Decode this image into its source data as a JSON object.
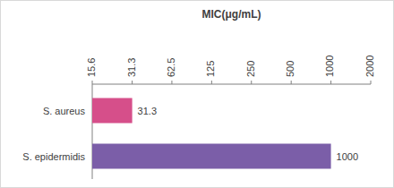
{
  "chart_data": {
    "type": "bar",
    "orientation": "horizontal",
    "title": "MIC(μg/mL)",
    "categories": [
      "S. aureus",
      "S. epidermidis"
    ],
    "values": [
      31.3,
      1000
    ],
    "colors": [
      "#d64f8a",
      "#7b5ea8"
    ],
    "log": "x",
    "xlim": [
      15.6,
      2000
    ],
    "xticks": [
      15.6,
      31.3,
      62.5,
      125,
      250,
      500,
      1000,
      2000
    ],
    "grid": false,
    "data_labels": true
  }
}
